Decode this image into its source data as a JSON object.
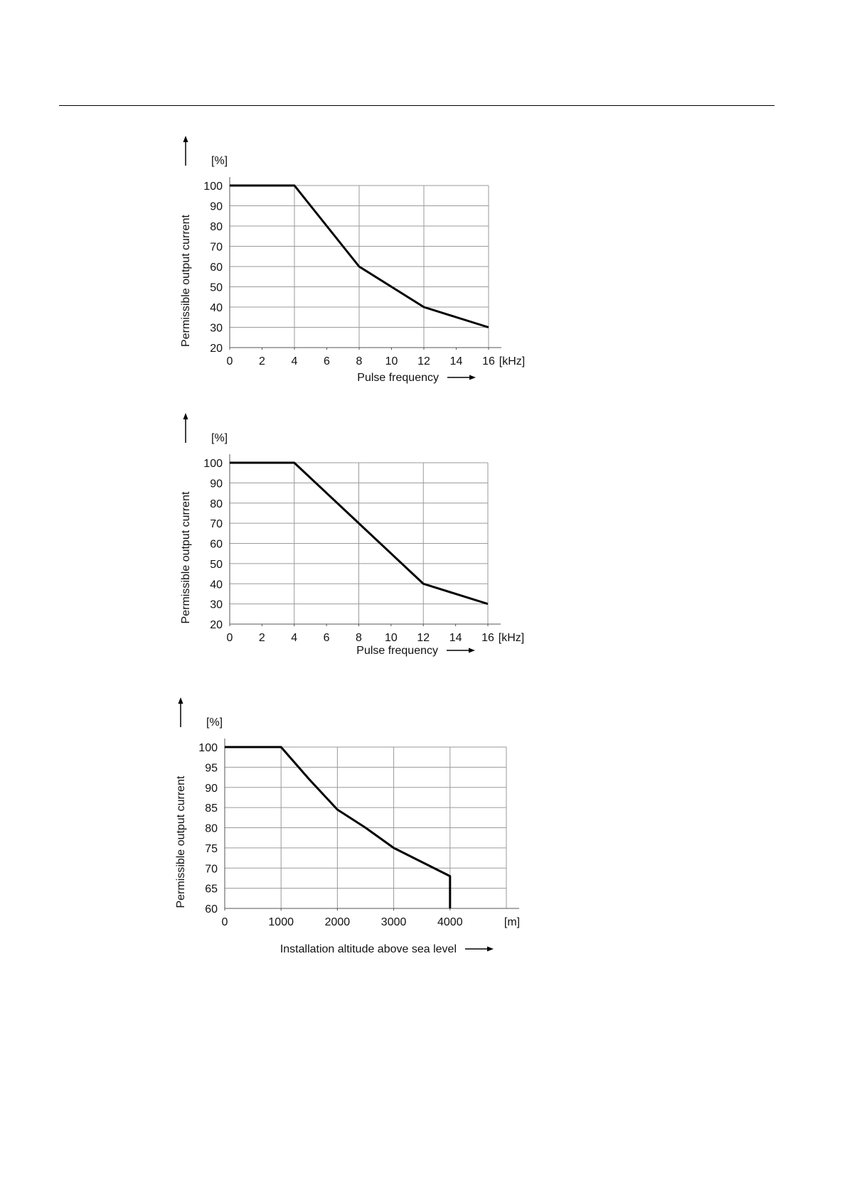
{
  "chart_data": [
    {
      "type": "line",
      "ylabel": "Permissible output current",
      "yunit": "[%]",
      "xlabel": "Pulse frequency",
      "xunit": "[kHz]",
      "xlim": [
        0,
        16
      ],
      "ylim": [
        20,
        100
      ],
      "xticks": [
        "0",
        "2",
        "4",
        "6",
        "8",
        "10",
        "12",
        "14",
        "16"
      ],
      "yticks": [
        "20",
        "30",
        "40",
        "50",
        "60",
        "70",
        "80",
        "90",
        "100"
      ],
      "xgrid": [
        4,
        8,
        12,
        16
      ],
      "grid": true,
      "series": [
        {
          "x": [
            0,
            4,
            6,
            8,
            10,
            12,
            14,
            16
          ],
          "y": [
            100,
            100,
            80,
            60,
            50,
            40,
            35,
            30
          ]
        }
      ]
    },
    {
      "type": "line",
      "ylabel": "Permissible output current",
      "yunit": "[%]",
      "xlabel": "Pulse frequency",
      "xunit": "[kHz]",
      "xlim": [
        0,
        16
      ],
      "ylim": [
        20,
        100
      ],
      "xticks": [
        "0",
        "2",
        "4",
        "6",
        "8",
        "10",
        "12",
        "14",
        "16"
      ],
      "yticks": [
        "20",
        "30",
        "40",
        "50",
        "60",
        "70",
        "80",
        "90",
        "100"
      ],
      "xgrid": [
        4,
        8,
        12,
        16
      ],
      "grid": true,
      "series": [
        {
          "x": [
            0,
            4,
            6,
            8,
            10,
            12,
            14,
            16
          ],
          "y": [
            100,
            100,
            85,
            70,
            55,
            40,
            35,
            30
          ]
        }
      ]
    },
    {
      "type": "line",
      "ylabel": "Permissible output current",
      "yunit": "[%]",
      "xlabel": "Installation altitude above sea level",
      "xunit": "[m]",
      "xlim": [
        0,
        5000
      ],
      "ylim": [
        60,
        100
      ],
      "xticks": [
        "0",
        "1000",
        "2000",
        "3000",
        "4000"
      ],
      "xtickvals": [
        0,
        1000,
        2000,
        3000,
        4000
      ],
      "yticks": [
        "60",
        "65",
        "70",
        "75",
        "80",
        "85",
        "90",
        "95",
        "100"
      ],
      "xgrid": [
        1000,
        2000,
        3000,
        4000,
        5000
      ],
      "grid": true,
      "series": [
        {
          "x": [
            0,
            1000,
            1500,
            2000,
            2500,
            3000,
            3500,
            4000,
            4000
          ],
          "y": [
            100,
            100,
            92,
            84.5,
            80,
            75,
            71.5,
            68,
            60
          ]
        }
      ]
    }
  ]
}
